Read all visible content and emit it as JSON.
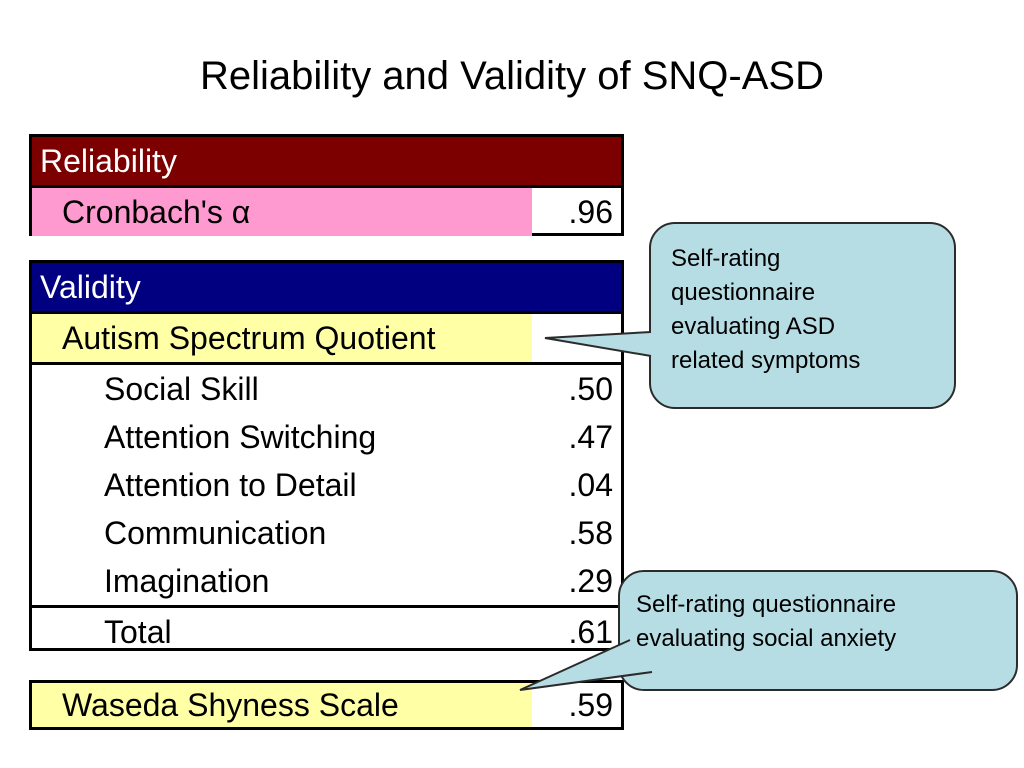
{
  "title": "Reliability and Validity of SNQ-ASD",
  "colors": {
    "reliability_header": "#7d0000",
    "validity_header": "#000080",
    "cronbach_fill": "#ff9ad0",
    "aq_fill": "#ffffa6",
    "wss_fill": "#ffffa6",
    "callout_fill": "#b7dde4"
  },
  "reliability": {
    "header": "Reliability",
    "rows": [
      {
        "label": "Cronbach's α",
        "value": ".96"
      }
    ]
  },
  "validity": {
    "header": "Validity",
    "aq_label": "Autism Spectrum Quotient",
    "subscales": [
      {
        "label": "Social Skill",
        "value": ".50"
      },
      {
        "label": "Attention Switching",
        "value": ".47"
      },
      {
        "label": "Attention to Detail",
        "value": ".04"
      },
      {
        "label": "Communication",
        "value": ".58"
      },
      {
        "label": "Imagination",
        "value": ".29"
      }
    ],
    "total": {
      "label": "Total",
      "value": ".61"
    }
  },
  "wss": {
    "label": "Waseda Shyness Scale",
    "value": ".59"
  },
  "callouts": {
    "aq": [
      "Self-rating",
      "questionnaire",
      "evaluating ASD",
      "related symptoms"
    ],
    "wss": [
      "Self-rating questionnaire",
      "evaluating social anxiety"
    ]
  }
}
